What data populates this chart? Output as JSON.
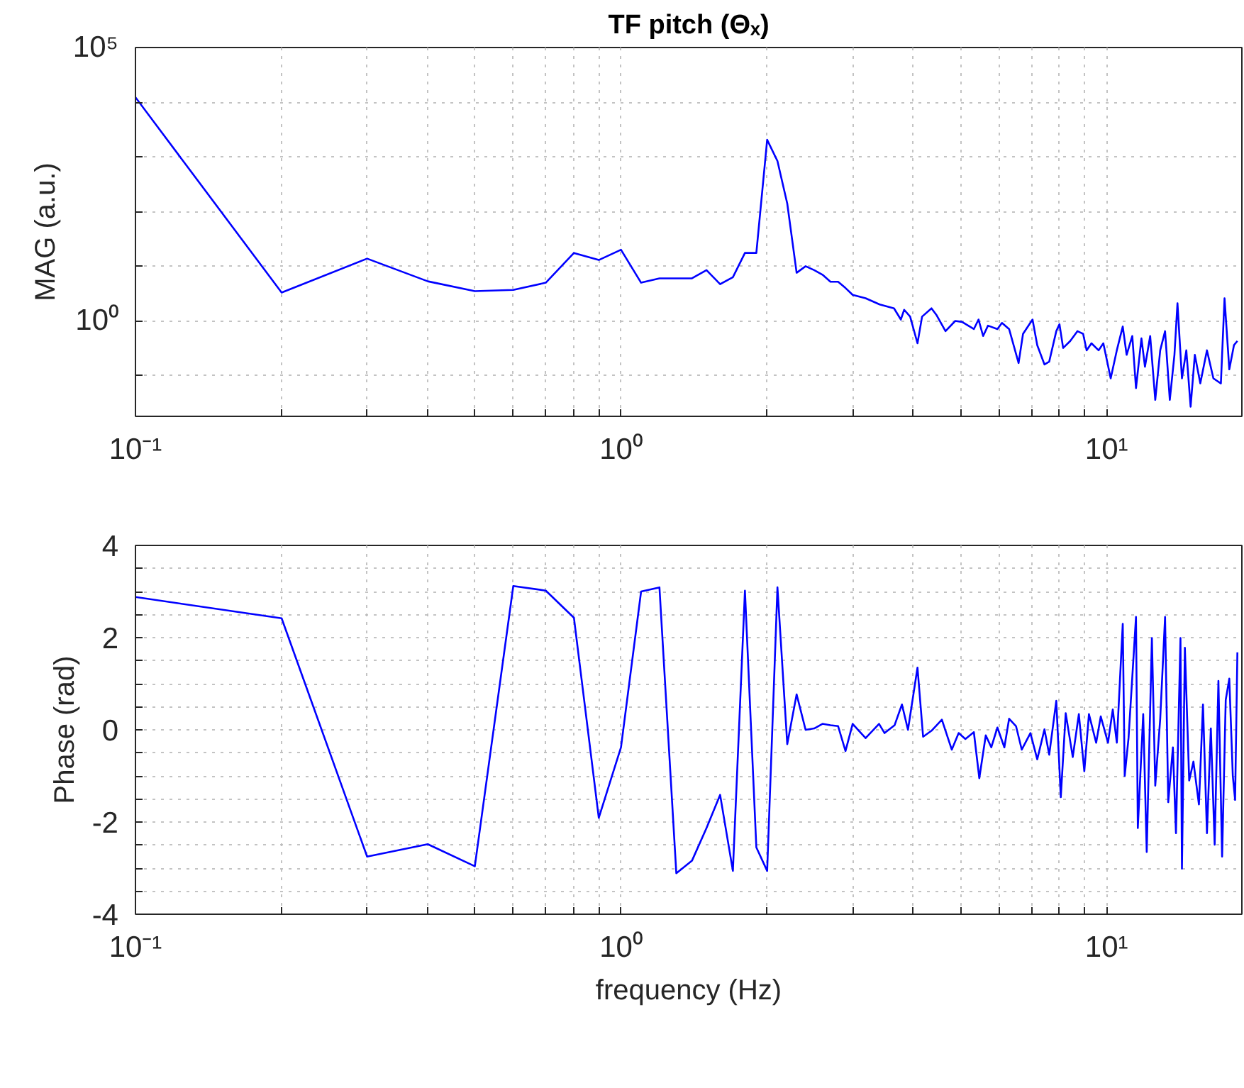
{
  "chart_data": [
    {
      "type": "line",
      "title": "TF pitch (Θₓ)",
      "ylabel": "MAG (a.u.)",
      "log": "xy",
      "grid": true,
      "color": "#0000ff",
      "xlim": [
        0.1,
        19
      ],
      "ylim": [
        0.018,
        100000
      ],
      "xticks": [
        {
          "value": 0.1,
          "label": "10⁻¹"
        },
        {
          "value": 0.2,
          "label": null
        },
        {
          "value": 0.3,
          "label": null
        },
        {
          "value": 0.4,
          "label": null
        },
        {
          "value": 0.5,
          "label": null
        },
        {
          "value": 0.6,
          "label": null
        },
        {
          "value": 0.7,
          "label": null
        },
        {
          "value": 0.8,
          "label": null
        },
        {
          "value": 0.9,
          "label": null
        },
        {
          "value": 1,
          "label": "10⁰"
        },
        {
          "value": 2,
          "label": null
        },
        {
          "value": 3,
          "label": null
        },
        {
          "value": 4,
          "label": null
        },
        {
          "value": 5,
          "label": null
        },
        {
          "value": 6,
          "label": null
        },
        {
          "value": 7,
          "label": null
        },
        {
          "value": 8,
          "label": null
        },
        {
          "value": 9,
          "label": null
        },
        {
          "value": 10,
          "label": "10¹"
        }
      ],
      "yticks": [
        {
          "value": 0.1,
          "label": null
        },
        {
          "value": 1,
          "label": "10⁰"
        },
        {
          "value": 10,
          "label": null
        },
        {
          "value": 100,
          "label": null
        },
        {
          "value": 1000,
          "label": null
        },
        {
          "value": 10000,
          "label": null
        },
        {
          "value": 100000,
          "label": "10⁵"
        }
      ],
      "x": [
        0.1,
        0.2,
        0.3,
        0.4,
        0.5,
        0.6,
        0.7,
        0.8,
        0.9,
        1.0,
        1.1,
        1.2,
        1.3,
        1.4,
        1.5,
        1.6,
        1.7,
        1.8,
        1.9,
        2.0,
        2.1,
        2.2,
        2.3,
        2.4,
        2.5,
        2.6,
        2.7,
        2.8,
        2.9,
        3.0,
        3.19,
        3.41,
        3.65,
        3.77,
        3.83,
        3.94,
        4.08,
        4.17,
        4.36,
        4.46,
        4.66,
        4.88,
        5.04,
        5.33,
        5.45,
        5.57,
        5.7,
        5.96,
        6.09,
        6.3,
        6.59,
        6.73,
        7.04,
        7.2,
        7.45,
        7.62,
        7.88,
        8.0,
        8.14,
        8.42,
        8.71,
        8.95,
        9.1,
        9.31,
        9.63,
        9.85,
        10.2,
        10.5,
        10.8,
        11.0,
        11.3,
        11.5,
        11.8,
        12.0,
        12.3,
        12.6,
        12.9,
        13.2,
        13.5,
        13.8,
        14.0,
        14.3,
        14.6,
        14.9,
        15.2,
        15.6,
        16.1,
        16.6,
        17.2,
        17.5,
        17.9,
        18.3,
        18.6
      ],
      "values": [
        12300,
        3.3,
        13.8,
        5.3,
        3.5,
        3.7,
        5,
        17.5,
        13,
        20,
        5,
        6,
        6,
        6,
        8.5,
        4.7,
        6.3,
        17.5,
        17.5,
        2050,
        840,
        140,
        7.6,
        10,
        8.5,
        7,
        5.2,
        5.2,
        4,
        3.0,
        2.6,
        2.0,
        1.7,
        1.06,
        1.6,
        1.2,
        0.39,
        1.2,
        1.7,
        1.3,
        0.65,
        1.0,
        0.96,
        0.71,
        1.06,
        0.53,
        0.82,
        0.71,
        0.92,
        0.71,
        0.17,
        0.58,
        1.06,
        0.36,
        0.16,
        0.18,
        0.65,
        0.87,
        0.32,
        0.43,
        0.65,
        0.58,
        0.29,
        0.39,
        0.29,
        0.39,
        0.089,
        0.29,
        0.79,
        0.24,
        0.53,
        0.059,
        0.48,
        0.145,
        0.53,
        0.036,
        0.29,
        0.65,
        0.036,
        0.24,
        2.1,
        0.089,
        0.29,
        0.027,
        0.24,
        0.072,
        0.29,
        0.089,
        0.072,
        2.6,
        0.13,
        0.36,
        0.43
      ]
    },
    {
      "type": "line",
      "xlabel": "frequency (Hz)",
      "ylabel": "Phase (rad)",
      "log": "x",
      "grid": true,
      "color": "#0000ff",
      "xlim": [
        0.1,
        19
      ],
      "ylim": [
        -4,
        4
      ],
      "xticks": [
        {
          "value": 0.1,
          "label": "10⁻¹"
        },
        {
          "value": 0.2,
          "label": null
        },
        {
          "value": 0.3,
          "label": null
        },
        {
          "value": 0.4,
          "label": null
        },
        {
          "value": 0.5,
          "label": null
        },
        {
          "value": 0.6,
          "label": null
        },
        {
          "value": 0.7,
          "label": null
        },
        {
          "value": 0.8,
          "label": null
        },
        {
          "value": 0.9,
          "label": null
        },
        {
          "value": 1,
          "label": "10⁰"
        },
        {
          "value": 2,
          "label": null
        },
        {
          "value": 3,
          "label": null
        },
        {
          "value": 4,
          "label": null
        },
        {
          "value": 5,
          "label": null
        },
        {
          "value": 6,
          "label": null
        },
        {
          "value": 7,
          "label": null
        },
        {
          "value": 8,
          "label": null
        },
        {
          "value": 9,
          "label": null
        },
        {
          "value": 10,
          "label": "10¹"
        }
      ],
      "yticks": [
        -4,
        {
          "value": -3.5,
          "label": null
        },
        {
          "value": -3,
          "label": null
        },
        {
          "value": -2.5,
          "label": null
        },
        -2,
        {
          "value": -1.5,
          "label": null
        },
        {
          "value": -1,
          "label": null
        },
        {
          "value": -0.5,
          "label": null
        },
        0,
        {
          "value": 0.5,
          "label": null
        },
        {
          "value": 1,
          "label": null
        },
        {
          "value": 1.5,
          "label": null
        },
        2,
        {
          "value": 2.5,
          "label": null
        },
        {
          "value": 3,
          "label": null
        },
        {
          "value": 3.5,
          "label": null
        },
        4
      ],
      "x": [
        0.1,
        0.2,
        0.3,
        0.4,
        0.5,
        0.6,
        0.7,
        0.8,
        0.9,
        1.0,
        1.1,
        1.2,
        1.3,
        1.4,
        1.5,
        1.6,
        1.7,
        1.8,
        1.9,
        2.0,
        2.1,
        2.2,
        2.3,
        2.4,
        2.5,
        2.6,
        2.7,
        2.8,
        2.9,
        3.0,
        3.09,
        3.19,
        3.4,
        3.49,
        3.66,
        3.79,
        3.9,
        4.08,
        4.19,
        4.36,
        4.58,
        4.8,
        4.96,
        5.12,
        5.33,
        5.47,
        5.64,
        5.79,
        5.96,
        6.16,
        6.3,
        6.51,
        6.69,
        6.97,
        7.2,
        7.45,
        7.62,
        7.88,
        8.05,
        8.24,
        8.52,
        8.77,
        9.0,
        9.2,
        9.52,
        9.73,
        10.07,
        10.3,
        10.5,
        10.8,
        10.9,
        11.1,
        11.5,
        11.6,
        11.9,
        12.1,
        12.4,
        12.6,
        12.9,
        13.2,
        13.4,
        13.7,
        13.9,
        14.2,
        14.3,
        14.5,
        14.8,
        15.1,
        15.5,
        15.8,
        16.1,
        16.4,
        16.7,
        17.0,
        17.3,
        17.6,
        17.9,
        18.2,
        18.4,
        18.6
      ],
      "values": [
        2.88,
        2.42,
        -2.75,
        -2.48,
        -2.96,
        3.12,
        3.02,
        2.43,
        -1.91,
        -0.38,
        3.0,
        3.09,
        -3.11,
        -2.84,
        -2.13,
        -1.41,
        -3.06,
        3.02,
        -2.55,
        -3.06,
        3.09,
        -0.31,
        0.77,
        0,
        0.03,
        0.13,
        0.1,
        0.08,
        -0.46,
        0.13,
        -0.02,
        -0.18,
        0.13,
        -0.07,
        0.1,
        0.55,
        0,
        1.35,
        -0.15,
        -0.02,
        0.22,
        -0.43,
        -0.07,
        -0.2,
        -0.05,
        -1.05,
        -0.12,
        -0.38,
        0.05,
        -0.38,
        0.24,
        0.08,
        -0.43,
        -0.07,
        -0.64,
        0.01,
        -0.54,
        0.63,
        -1.46,
        0.36,
        -0.59,
        0.34,
        -0.9,
        0.34,
        -0.28,
        0.29,
        -0.28,
        0.44,
        -0.28,
        2.3,
        -1.0,
        -0.18,
        2.45,
        -2.13,
        0.34,
        -2.65,
        1.99,
        -1.21,
        0.24,
        2.45,
        -1.57,
        -0.38,
        -2.24,
        1.99,
        -3.01,
        1.78,
        -1.1,
        -0.69,
        -1.62,
        0.55,
        -2.24,
        0.03,
        -2.49,
        1.06,
        -2.75,
        0.65,
        1.11,
        -1.0,
        -1.52,
        1.68
      ]
    }
  ]
}
